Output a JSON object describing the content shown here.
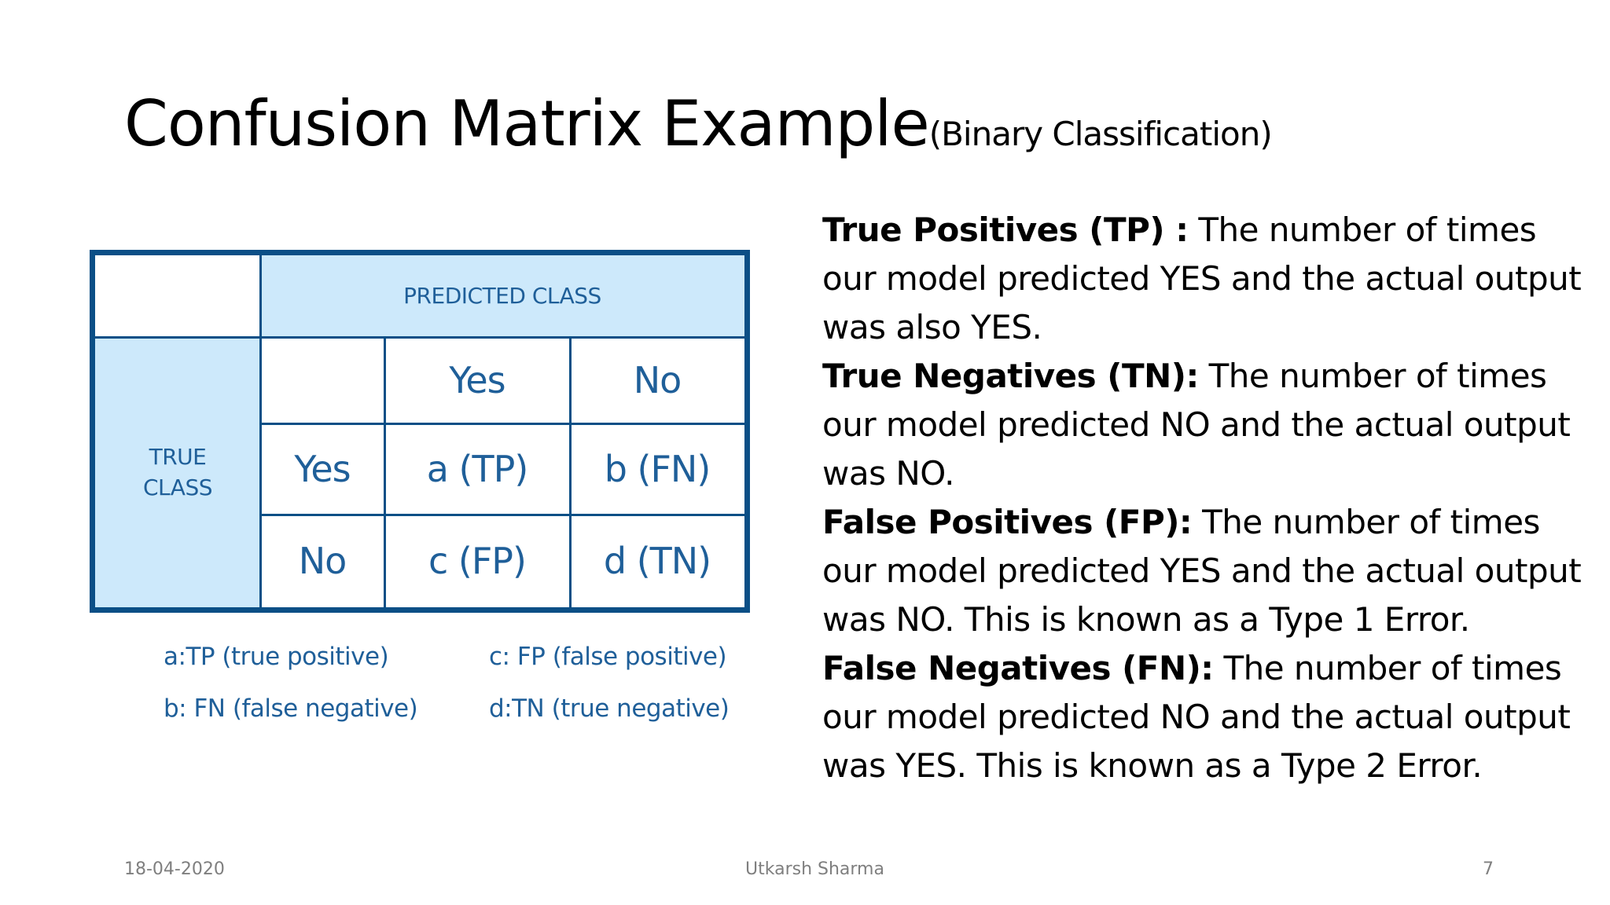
{
  "slide": {
    "title_main": "Confusion Matrix Example",
    "title_sub": "(Binary Classification)"
  },
  "matrix": {
    "predicted_header": "PREDICTED CLASS",
    "true_header_line1": "TRUE",
    "true_header_line2": "CLASS",
    "col_yes": "Yes",
    "col_no": "No",
    "row_yes": "Yes",
    "row_no": "No",
    "cell_tp": "a (TP)",
    "cell_fn": "b (FN)",
    "cell_fp": "c (FP)",
    "cell_tn": "d (TN)",
    "header_color": "#cde9fb",
    "border_color": "#0b4f86",
    "text_color": "#1f5f99"
  },
  "legend": {
    "tp": "a:TP (true positive)",
    "fn": "b: FN (false negative)",
    "fp": "c: FP (false positive)",
    "tn": "d:TN (true negative)"
  },
  "definitions": [
    {
      "term": "True Positives (TP) :",
      "text": " The number of times our model predicted YES and the actual output was also YES."
    },
    {
      "term": "True Negatives (TN):",
      "text": " The number of times our model predicted NO and the actual output was NO."
    },
    {
      "term": "False Positives (FP):",
      "text": " The number of times our model predicted YES and the actual output was NO. This is known as a Type 1 Error."
    },
    {
      "term": "False Negatives (FN):",
      "text": " The number of times our model predicted NO and the actual output was YES. This is known as a Type 2 Error."
    }
  ],
  "footer": {
    "date": "18-04-2020",
    "author": "Utkarsh Sharma",
    "page": "7"
  }
}
